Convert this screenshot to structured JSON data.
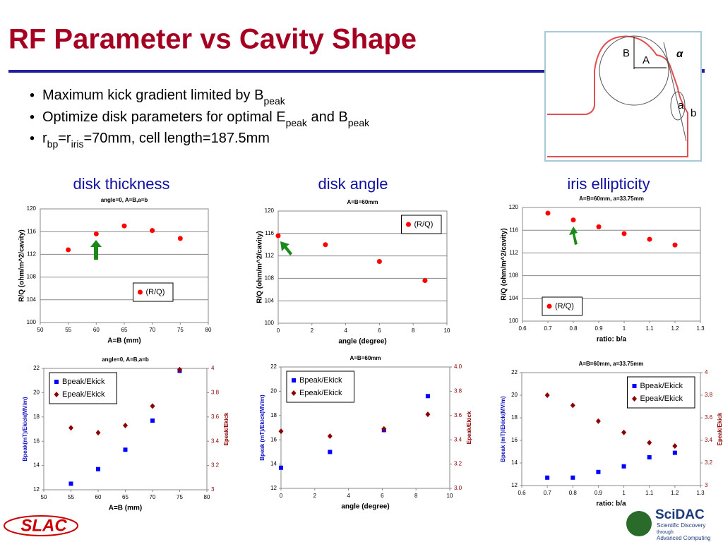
{
  "slide": {
    "title": "RF Parameter vs Cavity Shape",
    "bullets": [
      [
        "Maximum kick gradient limited by B",
        "peak"
      ],
      [
        "Optimize disk parameters for optimal E",
        "peak",
        " and B",
        "peak"
      ],
      [
        "r",
        "bp",
        "=r",
        "iris",
        "=70mm, cell length=187.5mm"
      ]
    ],
    "headings": [
      "disk thickness",
      "disk angle",
      "iris ellipticity"
    ],
    "diagram_labels": [
      "B",
      "A",
      "α",
      "a",
      "b"
    ],
    "logos": {
      "slac": "SLAC",
      "scidac": "SciDAC",
      "scidac_tagline": [
        "Scientific Discovery",
        "through",
        "Advanced Computing"
      ]
    }
  },
  "chart_data": [
    {
      "type": "scatter",
      "title": "angle=0, A=B,a=b",
      "xlabel": "A=B (mm)",
      "ylabel": "R/Q (ohm/m^2/cavity)",
      "x": [
        55,
        60,
        65,
        70,
        75
      ],
      "xlim": [
        50,
        80
      ],
      "xticks": [
        50,
        55,
        60,
        65,
        70,
        75,
        80
      ],
      "ylim": [
        100,
        120
      ],
      "yticks": [
        100,
        104,
        108,
        112,
        116,
        120
      ],
      "grid": true,
      "legend": "bottom-right",
      "series": [
        {
          "name": "(R/Q)",
          "color": "#ff0000",
          "marker": "circle",
          "values": [
            112.8,
            115.6,
            117,
            116.2,
            114.8
          ]
        }
      ]
    },
    {
      "type": "scatter",
      "title": "A=B=60mm",
      "xlabel": "angle (degree)",
      "ylabel": "R/Q (ohm/m^2/cavity)",
      "x": [
        0,
        2.8,
        6,
        8.7
      ],
      "xlim": [
        0,
        10
      ],
      "xticks": [
        0,
        2,
        4,
        6,
        8,
        10
      ],
      "ylim": [
        100,
        120
      ],
      "yticks": [
        100,
        104,
        108,
        112,
        116,
        120
      ],
      "grid": true,
      "legend": "top-right",
      "series": [
        {
          "name": "(R/Q)",
          "color": "#ff0000",
          "marker": "circle",
          "values": [
            115.6,
            114,
            111,
            107.6
          ]
        }
      ]
    },
    {
      "type": "scatter",
      "title": "A=B=60mm, a=33.75mm",
      "xlabel": "ratio: b/a",
      "ylabel": "R/Q (ohm/m^2/cavity)",
      "x": [
        0.7,
        0.8,
        0.9,
        1,
        1.1,
        1.2
      ],
      "xlim": [
        0.6,
        1.3
      ],
      "xticks": [
        0.6,
        0.7,
        0.8,
        0.9,
        1,
        1.1,
        1.2,
        1.3
      ],
      "ylim": [
        100,
        120
      ],
      "yticks": [
        100,
        104,
        108,
        112,
        116,
        120
      ],
      "grid": true,
      "legend": "bottom-left",
      "series": [
        {
          "name": "(R/Q)",
          "color": "#ff0000",
          "marker": "circle",
          "values": [
            119,
            117.8,
            116.6,
            115.4,
            114.4,
            113.4
          ]
        }
      ]
    },
    {
      "type": "scatter",
      "title": "angle=0, A=B,a=b",
      "xlabel": "A=B (mm)",
      "ylabel": "Bpeak(mT)/Ekick(MV/m)",
      "y2label": "Epeak/Ekick",
      "x": [
        55,
        60,
        65,
        70,
        75
      ],
      "xlim": [
        50,
        80
      ],
      "xticks": [
        50,
        55,
        60,
        65,
        70,
        75,
        80
      ],
      "ylim": [
        12,
        22
      ],
      "yticks": [
        12,
        14,
        16,
        18,
        20,
        22
      ],
      "y2lim": [
        3,
        4
      ],
      "y2ticks": [
        3,
        3.2,
        3.4,
        3.6,
        3.8,
        4
      ],
      "grid": false,
      "legend": "top-left",
      "series": [
        {
          "name": "Bpeak/Ekick",
          "color": "#0000ff",
          "marker": "square",
          "values": [
            12.5,
            13.7,
            15.3,
            17.7,
            21.8
          ]
        },
        {
          "name": "Epeak/Ekick",
          "color": "#8b0000",
          "marker": "diamond",
          "axis": "y2",
          "values": [
            3.51,
            3.47,
            3.53,
            3.69,
            3.99
          ]
        }
      ]
    },
    {
      "type": "scatter",
      "title": "A=B=60mm",
      "xlabel": "angle (degree)",
      "ylabel": "Bpeak (mT)/Ekick(MV/m)",
      "y2label": "Epeak/Ekick",
      "x": [
        0,
        2.9,
        6.1,
        8.7
      ],
      "xlim": [
        0,
        10
      ],
      "xticks": [
        0,
        2,
        4,
        6,
        8,
        10
      ],
      "ylim": [
        12,
        22
      ],
      "yticks": [
        12,
        14,
        16,
        18,
        20,
        22
      ],
      "y2lim": [
        3,
        4
      ],
      "y2ticks": [
        {
          "value": 3,
          "label": "3.0"
        },
        3.2,
        3.4,
        3.6,
        3.8,
        {
          "value": 4,
          "label": "4.0"
        }
      ],
      "grid": false,
      "legend": "top-left",
      "series": [
        {
          "name": "Bpeak/Ekick",
          "color": "#0000ff",
          "marker": "square",
          "values": [
            13.7,
            15,
            16.8,
            19.6
          ]
        },
        {
          "name": "Epeak/Ekick",
          "color": "#8b0000",
          "marker": "diamond",
          "axis": "y2",
          "values": [
            3.47,
            3.43,
            3.49,
            3.61
          ]
        }
      ]
    },
    {
      "type": "scatter",
      "title": "A=B=60mm, a=33.75mm",
      "xlabel": "ratio: b/a",
      "ylabel": "Bpeak (mT)/Ekick(MV/m)",
      "y2label": "Epeak/Ekick",
      "x": [
        0.7,
        0.8,
        0.9,
        1,
        1.1,
        1.2
      ],
      "xlim": [
        0.6,
        1.3
      ],
      "xticks": [
        0.6,
        0.7,
        0.8,
        0.9,
        1,
        1.1,
        1.2,
        1.3
      ],
      "ylim": [
        12,
        22
      ],
      "yticks": [
        12,
        14,
        16,
        18,
        20,
        22
      ],
      "y2lim": [
        3,
        4
      ],
      "y2ticks": [
        3,
        3.2,
        3.4,
        3.6,
        3.8,
        4
      ],
      "grid": false,
      "legend": "top-right",
      "series": [
        {
          "name": "Bpeak/Ekick",
          "color": "#0000ff",
          "marker": "square",
          "values": [
            12.7,
            12.7,
            13.2,
            13.7,
            14.5,
            14.9
          ]
        },
        {
          "name": "Epeak/Ekick",
          "color": "#8b0000",
          "marker": "diamond",
          "axis": "y2",
          "values": [
            3.8,
            3.71,
            3.57,
            3.47,
            3.38,
            3.35
          ]
        }
      ]
    }
  ]
}
